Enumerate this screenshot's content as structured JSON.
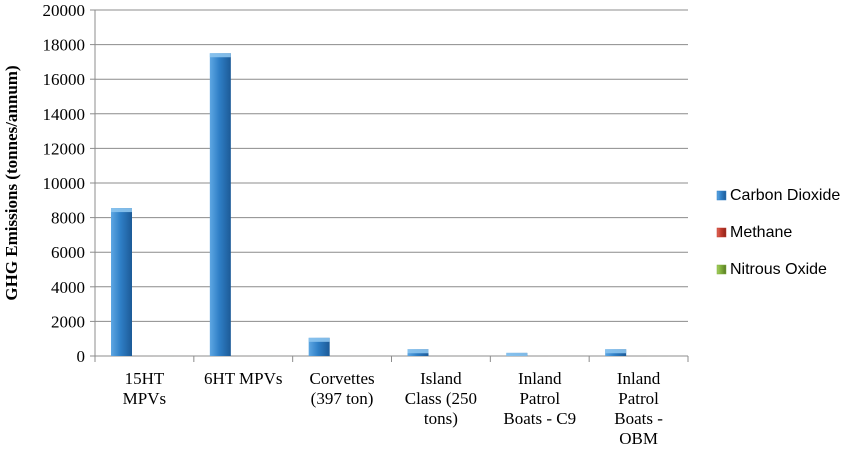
{
  "chart_data": {
    "type": "bar",
    "title": "",
    "xlabel": "",
    "ylabel": "GHG Emissions (tonnes/annum)",
    "ylim": [
      0,
      20000
    ],
    "yticks": [
      0,
      2000,
      4000,
      6000,
      8000,
      10000,
      12000,
      14000,
      16000,
      18000,
      20000
    ],
    "grid": true,
    "legend_position": "right",
    "categories": [
      [
        "15HT",
        "MPVs"
      ],
      [
        "6HT MPVs"
      ],
      [
        "Corvettes",
        "(397 ton)"
      ],
      [
        "Island",
        "Class (250",
        "tons)"
      ],
      [
        "Inland",
        "Patrol",
        "Boats - C9"
      ],
      [
        "Inland",
        "Patrol",
        "Boats -",
        "OBM"
      ]
    ],
    "series": [
      {
        "name": "Carbon Dioxide",
        "color": "#2f7fc6",
        "values": [
          8550,
          17500,
          1050,
          390,
          180,
          390
        ]
      },
      {
        "name": "Methane",
        "color": "#c0392b",
        "values": [
          0,
          0,
          0,
          0,
          0,
          0
        ]
      },
      {
        "name": "Nitrous Oxide",
        "color": "#7fae3a",
        "values": [
          0,
          0,
          0,
          0,
          0,
          0
        ]
      }
    ]
  }
}
